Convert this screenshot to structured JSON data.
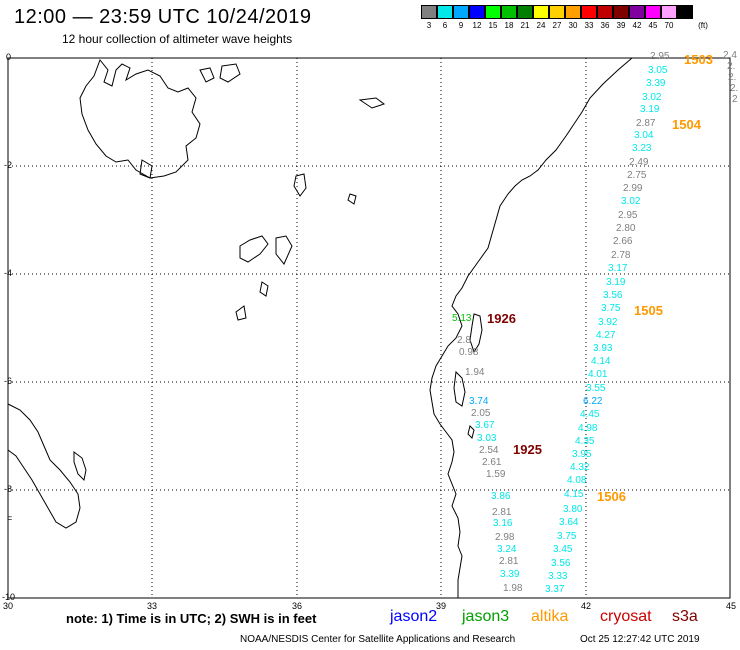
{
  "header": {
    "title": "12:00 — 23:59 UTC 10/24/2019",
    "subtitle": "12 hour collection of altimeter wave heights"
  },
  "legend": {
    "unit": "(ft)",
    "items": [
      {
        "label": "3",
        "color": "#808080"
      },
      {
        "label": "6",
        "color": "#00e8e8"
      },
      {
        "label": "9",
        "color": "#00a8ff"
      },
      {
        "label": "12",
        "color": "#0000ff"
      },
      {
        "label": "15",
        "color": "#00ff00"
      },
      {
        "label": "18",
        "color": "#00c000"
      },
      {
        "label": "21",
        "color": "#008000"
      },
      {
        "label": "24",
        "color": "#ffff00"
      },
      {
        "label": "27",
        "color": "#ffd000"
      },
      {
        "label": "30",
        "color": "#ffa000"
      },
      {
        "label": "33",
        "color": "#ff0000"
      },
      {
        "label": "36",
        "color": "#c00000"
      },
      {
        "label": "39",
        "color": "#800000"
      },
      {
        "label": "42",
        "color": "#8000a0"
      },
      {
        "label": "45",
        "color": "#ff00ff"
      },
      {
        "label": "70",
        "color": "#ffa0ff"
      },
      {
        "label": "",
        "color": "#000000"
      }
    ]
  },
  "axes": {
    "lon_labels": [
      "30",
      "33",
      "36",
      "39",
      "42",
      "45"
    ],
    "lat_labels": [
      "0",
      "-2",
      "-4",
      "-6",
      "-8",
      "-10"
    ]
  },
  "passes": [
    {
      "id": "1503",
      "color": "#ff9900"
    },
    {
      "id": "1504",
      "color": "#ff9900"
    },
    {
      "id": "1505",
      "color": "#ff9900"
    },
    {
      "id": "1506",
      "color": "#ff9900"
    },
    {
      "id": "1926",
      "color": "#800000"
    },
    {
      "id": "1925",
      "color": "#800000"
    }
  ],
  "tracks": {
    "track_1503_partial": {
      "values": [
        "2.4",
        "2.",
        "2.",
        "2.",
        "2"
      ],
      "colors": [
        "#808080",
        "#808080",
        "#808080",
        "#808080",
        "#808080"
      ]
    },
    "track_east": {
      "values": [
        "2.95",
        "3.05",
        "3.39",
        "3.02",
        "3.19",
        "2.87",
        "3.04",
        "3.23",
        "2.49",
        "2.75",
        "2.99",
        "3.02",
        "2.95",
        "2.80",
        "2.66",
        "2.78",
        "3.17",
        "3.19",
        "3.56",
        "3.75",
        "3.92",
        "4.27",
        "3.93",
        "4.14",
        "4.01",
        "3.55",
        "6.22",
        "4.45",
        "4.98",
        "4.35",
        "3.95",
        "4.32",
        "4.08",
        "4.15"
      ],
      "colors": [
        "#808080",
        "#00e8e8",
        "#00e8e8",
        "#00e8e8",
        "#00e8e8",
        "#808080",
        "#00e8e8",
        "#00e8e8",
        "#808080",
        "#808080",
        "#808080",
        "#00e8e8",
        "#808080",
        "#808080",
        "#808080",
        "#808080",
        "#00e8e8",
        "#00e8e8",
        "#00e8e8",
        "#00e8e8",
        "#00e8e8",
        "#00e8e8",
        "#00e8e8",
        "#00e8e8",
        "#00e8e8",
        "#00e8e8",
        "#00a8ff",
        "#00e8e8",
        "#00e8e8",
        "#00e8e8",
        "#00e8e8",
        "#00e8e8",
        "#00e8e8",
        "#00e8e8"
      ]
    },
    "track_1926": {
      "values": [
        "5.13",
        "2.8",
        "0.98",
        "1.94",
        "3.74",
        "2.05",
        "3.67",
        "3.03",
        "2.54",
        "2.61",
        "1.59"
      ],
      "colors": [
        "#00c000",
        "#808080",
        "#808080",
        "#808080",
        "#00a8ff",
        "#808080",
        "#00e8e8",
        "#00e8e8",
        "#808080",
        "#808080",
        "#808080"
      ]
    },
    "track_south_west": {
      "values": [
        "3.86",
        "2.81",
        "3.16",
        "2.98",
        "3.24",
        "2.81",
        "3.39",
        "1.98"
      ],
      "colors": [
        "#00e8e8",
        "#808080",
        "#00e8e8",
        "#808080",
        "#00e8e8",
        "#808080",
        "#00e8e8",
        "#808080"
      ]
    },
    "track_south_east": {
      "values": [
        "3.80",
        "3.64",
        "3.75",
        "3.45",
        "3.56",
        "3.33",
        "3.37"
      ],
      "colors": [
        "#00e8e8",
        "#00e8e8",
        "#00e8e8",
        "#00e8e8",
        "#00e8e8",
        "#00e8e8",
        "#00e8e8"
      ]
    }
  },
  "footer": {
    "note": "note: 1) Time is in UTC; 2) SWH is in feet",
    "satellites": [
      {
        "name": "jason2",
        "color": "#0000ff"
      },
      {
        "name": "jason3",
        "color": "#00a000"
      },
      {
        "name": "altika",
        "color": "#ff9900"
      },
      {
        "name": "cryosat",
        "color": "#cc0000"
      },
      {
        "name": "s3a",
        "color": "#800000"
      }
    ],
    "credit": "NOAA/NESDIS Center for Satellite Applications and Research",
    "timestamp": "Oct 25 12:27:42 UTC 2019"
  }
}
